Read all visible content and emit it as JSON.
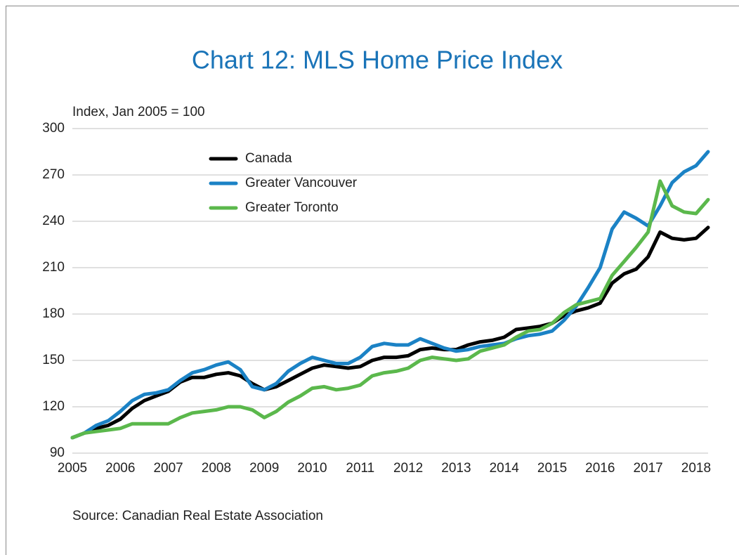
{
  "chart_data": {
    "type": "line",
    "title": "Chart 12: MLS Home Price Index",
    "y_label": "Index, Jan 2005 = 100",
    "source": "Source: Canadian Real Estate Association",
    "x": [
      2005,
      2005.25,
      2005.5,
      2005.75,
      2006,
      2006.25,
      2006.5,
      2006.75,
      2007,
      2007.25,
      2007.5,
      2007.75,
      2008,
      2008.25,
      2008.5,
      2008.75,
      2009,
      2009.25,
      2009.5,
      2009.75,
      2010,
      2010.25,
      2010.5,
      2010.75,
      2011,
      2011.25,
      2011.5,
      2011.75,
      2012,
      2012.25,
      2012.5,
      2012.75,
      2013,
      2013.25,
      2013.5,
      2013.75,
      2014,
      2014.25,
      2014.5,
      2014.75,
      2015,
      2015.25,
      2015.5,
      2015.75,
      2016,
      2016.25,
      2016.5,
      2016.75,
      2017,
      2017.25,
      2017.5,
      2017.75,
      2018,
      2018.25
    ],
    "series": [
      {
        "name": "Canada",
        "color": "#000000",
        "values": [
          100,
          103,
          106,
          108,
          112,
          119,
          124,
          127,
          130,
          136,
          139,
          139,
          141,
          142,
          140,
          135,
          131,
          133,
          137,
          141,
          145,
          147,
          146,
          145,
          146,
          150,
          152,
          152,
          153,
          157,
          158,
          157,
          157,
          160,
          162,
          163,
          165,
          170,
          171,
          172,
          174,
          179,
          182,
          184,
          187,
          200,
          206,
          209,
          217,
          233,
          229,
          228,
          229,
          236
        ]
      },
      {
        "name": "Greater Vancouver",
        "color": "#1b82c5",
        "values": [
          100,
          103,
          108,
          111,
          117,
          124,
          128,
          129,
          131,
          137,
          142,
          144,
          147,
          149,
          144,
          133,
          131,
          135,
          143,
          148,
          152,
          150,
          148,
          148,
          152,
          159,
          161,
          160,
          160,
          164,
          161,
          158,
          156,
          157,
          159,
          160,
          161,
          164,
          166,
          167,
          169,
          176,
          185,
          197,
          210,
          235,
          246,
          242,
          237,
          250,
          265,
          272,
          276,
          285
        ]
      },
      {
        "name": "Greater Toronto",
        "color": "#5bb84c",
        "values": [
          100,
          103,
          104,
          105,
          106,
          109,
          109,
          109,
          109,
          113,
          116,
          117,
          118,
          120,
          120,
          118,
          113,
          117,
          123,
          127,
          132,
          133,
          131,
          132,
          134,
          140,
          142,
          143,
          145,
          150,
          152,
          151,
          150,
          151,
          156,
          158,
          160,
          165,
          169,
          170,
          174,
          181,
          186,
          188,
          190,
          205,
          214,
          223,
          233,
          266,
          250,
          246,
          245,
          254
        ]
      }
    ],
    "xlim": [
      2005,
      2018.25
    ],
    "xticks": [
      2005,
      2006,
      2007,
      2008,
      2009,
      2010,
      2011,
      2012,
      2013,
      2014,
      2015,
      2016,
      2017,
      2018
    ],
    "ylim": [
      90,
      300
    ],
    "yticks": [
      90,
      120,
      150,
      180,
      210,
      240,
      270,
      300
    ],
    "grid": true,
    "legend": "top"
  }
}
